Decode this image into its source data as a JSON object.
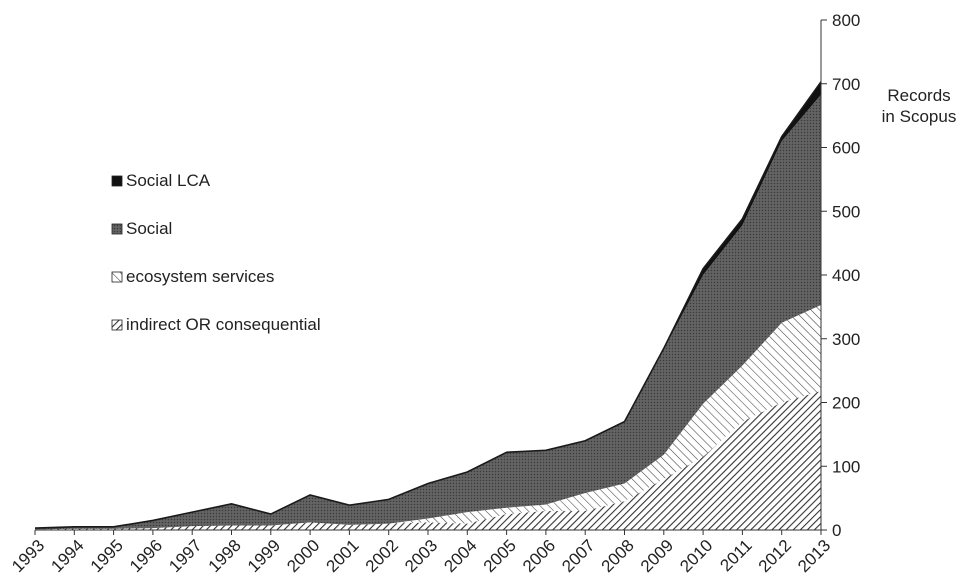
{
  "chart_data": {
    "type": "area",
    "stacked": true,
    "categories": [
      "1993",
      "1994",
      "1995",
      "1996",
      "1997",
      "1998",
      "1999",
      "2000",
      "2001",
      "2002",
      "2003",
      "2004",
      "2005",
      "2006",
      "2007",
      "2008",
      "2009",
      "2010",
      "2011",
      "2012",
      "2013"
    ],
    "series": [
      {
        "name": "indirect OR consequential",
        "pattern": "dense-diagonal-hatch",
        "values": [
          1,
          2,
          2,
          3,
          6,
          7,
          7,
          12,
          8,
          10,
          12,
          10,
          25,
          30,
          30,
          45,
          80,
          115,
          170,
          200,
          218
        ]
      },
      {
        "name": "ecosystem services",
        "pattern": "sparse-diagonal-hatch",
        "values": [
          0,
          0,
          0,
          0,
          0,
          0,
          0,
          0,
          0,
          0,
          6,
          18,
          10,
          10,
          28,
          28,
          38,
          83,
          88,
          125,
          135
        ]
      },
      {
        "name": "Social",
        "pattern": "dark-dotted",
        "values": [
          2,
          3,
          3,
          12,
          22,
          34,
          18,
          43,
          31,
          38,
          55,
          63,
          87,
          85,
          82,
          97,
          165,
          202,
          220,
          285,
          330
        ]
      },
      {
        "name": "Social LCA",
        "pattern": "solid-black",
        "values": [
          0,
          0,
          0,
          0,
          0,
          0,
          0,
          0,
          0,
          0,
          0,
          0,
          0,
          0,
          0,
          0,
          2,
          10,
          10,
          7,
          20
        ]
      }
    ],
    "ylabel": "Records in Scopus",
    "ylabel_lines": [
      "Records",
      "in Scopus"
    ],
    "ylim": [
      0,
      800
    ],
    "yticks": [
      "0",
      "100",
      "200",
      "300",
      "400",
      "500",
      "600",
      "700",
      "800"
    ],
    "y_axis_side": "right",
    "grid": false,
    "legend": {
      "placement": "left",
      "order": [
        "Social LCA",
        "Social",
        "ecosystem services",
        "indirect OR consequential"
      ]
    },
    "colors": {
      "outline": "#1a1a1a",
      "axis": "#333333",
      "social_fill": "#555555",
      "hatch": "#333333"
    }
  }
}
